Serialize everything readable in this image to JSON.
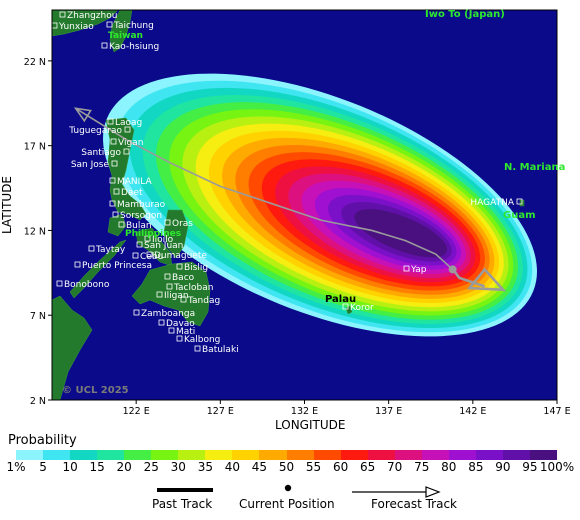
{
  "axes": {
    "xlabel": "LONGITUDE",
    "ylabel": "LATITUDE",
    "x_ticks": [
      "122 E",
      "127 E",
      "132 E",
      "137 E",
      "142 E",
      "147 E"
    ],
    "y_ticks": [
      "22 N",
      "17 N",
      "12 N",
      "7 N",
      "2 N"
    ],
    "lon_range": [
      117,
      147
    ],
    "lat_range": [
      2,
      25
    ]
  },
  "copyright": "© UCL 2025",
  "regions": {
    "taiwan": "Taiwan",
    "iwo_to": "Iwo To (Japan)",
    "n_mariana": "N. Mariana",
    "guam": "Guam",
    "palau": "Palau",
    "philippines": "Philippines"
  },
  "cities": [
    {
      "name": "Zhangzhou"
    },
    {
      "name": "Taichung"
    },
    {
      "name": "Yunxiao"
    },
    {
      "name": "Kao-hsiung"
    },
    {
      "name": "Laoag"
    },
    {
      "name": "Tuguegarao"
    },
    {
      "name": "Vigan"
    },
    {
      "name": "Santiago"
    },
    {
      "name": "San Jose"
    },
    {
      "name": "MANILA"
    },
    {
      "name": "Daet"
    },
    {
      "name": "Mamburao"
    },
    {
      "name": "Sorsogon"
    },
    {
      "name": "Bulan"
    },
    {
      "name": "Oras"
    },
    {
      "name": "Iloilo"
    },
    {
      "name": "San Juan"
    },
    {
      "name": "Cebu"
    },
    {
      "name": "Taytay"
    },
    {
      "name": "Puerto Princesa"
    },
    {
      "name": "Dumaguete"
    },
    {
      "name": "Bislig"
    },
    {
      "name": "Baco"
    },
    {
      "name": "Iligan"
    },
    {
      "name": "Tandag"
    },
    {
      "name": "Bonobono"
    },
    {
      "name": "Zamboanga"
    },
    {
      "name": "Davao"
    },
    {
      "name": "Mati"
    },
    {
      "name": "Kalbong"
    },
    {
      "name": "Batulaki"
    },
    {
      "name": "Yap"
    },
    {
      "name": "Koror"
    },
    {
      "name": "HAGATNA"
    },
    {
      "name": "Tacloban"
    }
  ],
  "track": {
    "past": [
      [
        142.7,
        8.7
      ],
      [
        141.2,
        9.2
      ],
      [
        140.9,
        9.6
      ]
    ],
    "current": [
      140.8,
      9.7
    ],
    "forecast": [
      [
        140.8,
        9.7
      ],
      [
        139.8,
        10.6
      ],
      [
        138.0,
        11.4
      ],
      [
        136.0,
        12.0
      ],
      [
        133.0,
        12.6
      ],
      [
        130.0,
        13.6
      ],
      [
        127.0,
        14.6
      ],
      [
        124.0,
        16.0
      ],
      [
        121.5,
        17.3
      ],
      [
        118.4,
        19.2
      ]
    ]
  },
  "legend": {
    "title": "Probability",
    "labels": [
      "1%",
      "5",
      "10",
      "15",
      "20",
      "25",
      "30",
      "35",
      "40",
      "45",
      "50",
      "55",
      "60",
      "65",
      "70",
      "75",
      "80",
      "85",
      "90",
      "95",
      "100%"
    ],
    "colors": [
      "#8cf4ff",
      "#3fe5f0",
      "#12d7c3",
      "#1fe5a0",
      "#44ee44",
      "#77f412",
      "#b8f012",
      "#f5ee10",
      "#ffd200",
      "#ffaa00",
      "#ff7e00",
      "#ff4a00",
      "#ff1a10",
      "#ee1040",
      "#dd1080",
      "#c610b8",
      "#a010d0",
      "#7a10c8",
      "#6010a8",
      "#4a1080"
    ],
    "past_track": "Past Track",
    "current_position": "Current Position",
    "forecast_track": "Forecast Track"
  },
  "colors": {
    "ocean": "#0a0a8a",
    "land": "#237a2c",
    "region_label": "#2ee82e",
    "track": "#9b9b9b"
  }
}
